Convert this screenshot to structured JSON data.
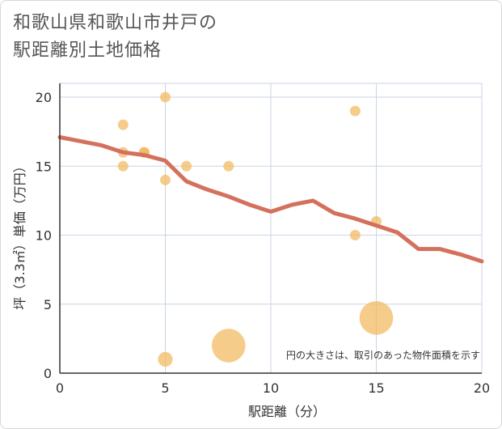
{
  "chart_data": {
    "type": "scatter",
    "title_lines": [
      "和歌山県和歌山市井戸の",
      "駅距離別土地価格"
    ],
    "xlabel": "駅距離（分）",
    "ylabel": "坪（3.3㎡）単価（万円）",
    "xlim": [
      0,
      20
    ],
    "ylim": [
      0,
      21
    ],
    "xticks": [
      0,
      5,
      10,
      15,
      20
    ],
    "yticks": [
      0,
      5,
      10,
      15,
      20
    ],
    "grid": true,
    "note": "円の大きさは、取引のあった物件面積を示す",
    "colors": {
      "points": "#f2b65a",
      "trend": "#d4715c",
      "grid": "#c9d6e3",
      "axis": "#333333"
    },
    "points": [
      {
        "x": 3,
        "y": 18,
        "size": 1
      },
      {
        "x": 3,
        "y": 16,
        "size": 1
      },
      {
        "x": 3,
        "y": 15,
        "size": 1
      },
      {
        "x": 4,
        "y": 16,
        "size": 1
      },
      {
        "x": 4,
        "y": 16,
        "size": 1
      },
      {
        "x": 5,
        "y": 20,
        "size": 1
      },
      {
        "x": 5,
        "y": 14,
        "size": 1
      },
      {
        "x": 5,
        "y": 1,
        "size": 1.4
      },
      {
        "x": 6,
        "y": 15,
        "size": 1
      },
      {
        "x": 8,
        "y": 15,
        "size": 1
      },
      {
        "x": 8,
        "y": 2,
        "size": 3.2
      },
      {
        "x": 14,
        "y": 19,
        "size": 1
      },
      {
        "x": 14,
        "y": 10,
        "size": 1
      },
      {
        "x": 15,
        "y": 11,
        "size": 1
      },
      {
        "x": 15,
        "y": 4,
        "size": 3.2
      }
    ],
    "trend": {
      "x": [
        0,
        1,
        2,
        3,
        4,
        5,
        6,
        7,
        8,
        9,
        10,
        11,
        12,
        13,
        14,
        15,
        16,
        17,
        18,
        19,
        20
      ],
      "y": [
        17.1,
        16.8,
        16.5,
        16.0,
        15.8,
        15.4,
        13.9,
        13.3,
        12.8,
        12.2,
        11.7,
        12.2,
        12.5,
        11.6,
        11.2,
        10.7,
        10.2,
        9.0,
        9.0,
        8.6,
        8.1
      ]
    }
  }
}
